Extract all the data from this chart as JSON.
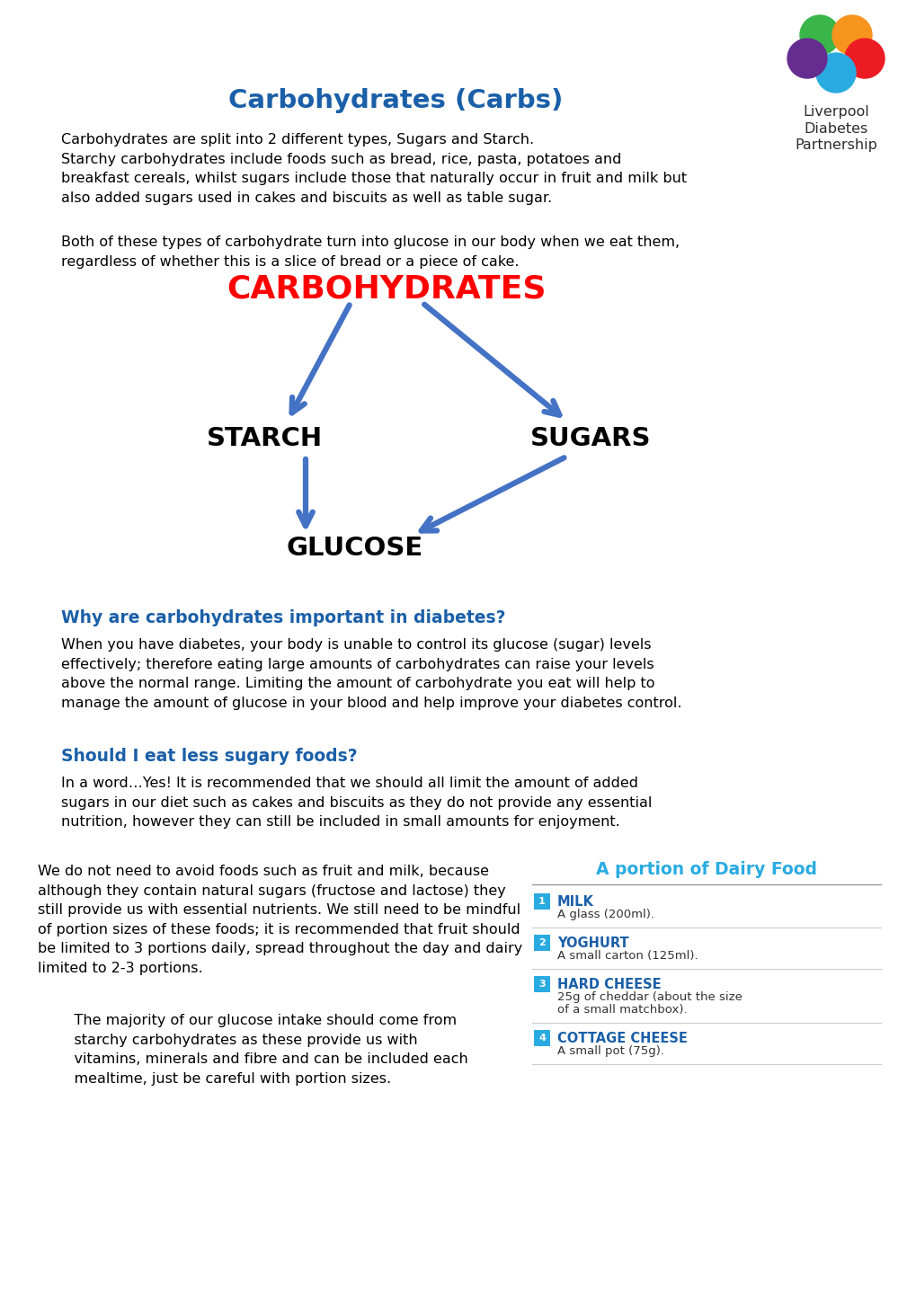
{
  "title": "Carbohydrates (Carbs)",
  "title_color": "#1a5fa8",
  "bg_color": "#ffffff",
  "carbs_label": "CARBOHYDRATES",
  "carbs_color": "#ff0000",
  "starch_label": "STARCH",
  "sugars_label": "SUGARS",
  "glucose_label": "GLUCOSE",
  "arrow_color": "#4472c4",
  "intro_text1": "Carbohydrates are split into 2 different types, Sugars and Starch.\nStarchy carbohydrates include foods such as bread, rice, pasta, potatoes and\nbreakfast cereals, whilst sugars include those that naturally occur in fruit and milk but\nalso added sugars used in cakes and biscuits as well as table sugar.",
  "intro_text2": "Both of these types of carbohydrate turn into glucose in our body when we eat them,\nregardless of whether this is a slice of bread or a piece of cake.",
  "section1_heading": "Why are carbohydrates important in diabetes?",
  "section1_heading_color": "#1a5fa8",
  "section1_text": "When you have diabetes, your body is unable to control its glucose (sugar) levels\neffectively; therefore eating large amounts of carbohydrates can raise your levels\nabove the normal range. Limiting the amount of carbohydrate you eat will help to\nmanage the amount of glucose in your blood and help improve your diabetes control.",
  "section2_heading": "Should I eat less sugary foods?",
  "section2_heading_color": "#1a5fa8",
  "section2_text": "In a word…Yes! It is recommended that we should all limit the amount of added\nsugars in our diet such as cakes and biscuits as they do not provide any essential\nnutrition, however they can still be included in small amounts for enjoyment.",
  "left_body_text": "We do not need to avoid foods such as fruit and milk, because\nalthough they contain natural sugars (fructose and lactose) they\nstill provide us with essential nutrients. We still need to be mindful\nof portion sizes of these foods; it is recommended that fruit should\nbe limited to 3 portions daily, spread throughout the day and dairy\nlimited to 2-3 portions.",
  "bottom_left_text": "    The majority of our glucose intake should come from\n    starchy carbohydrates as these provide us with\n    vitamins, minerals and fibre and can be included each\n    mealtime, just be careful with portion sizes.",
  "dairy_heading": "A portion of Dairy Food",
  "dairy_heading_color": "#29abe2",
  "dairy_items": [
    {
      "num": "1",
      "name": "MILK",
      "desc": "A glass (200ml)."
    },
    {
      "num": "2",
      "name": "YOGHURT",
      "desc": "A small carton (125ml)."
    },
    {
      "num": "3",
      "name": "HARD CHEESE",
      "desc": "25g of cheddar (about the size\nof a small matchbox)."
    },
    {
      "num": "4",
      "name": "COTTAGE CHEESE",
      "desc": "A small pot (75g)."
    }
  ],
  "dairy_num_color": "#29abe2",
  "dairy_name_color": "#1a5fa8",
  "liverpool_text": "Liverpool\nDiabetes\nPartnership",
  "logo_colors": [
    "#39b54a",
    "#f7941d",
    "#ed1c24",
    "#662d91",
    "#29abe2"
  ]
}
